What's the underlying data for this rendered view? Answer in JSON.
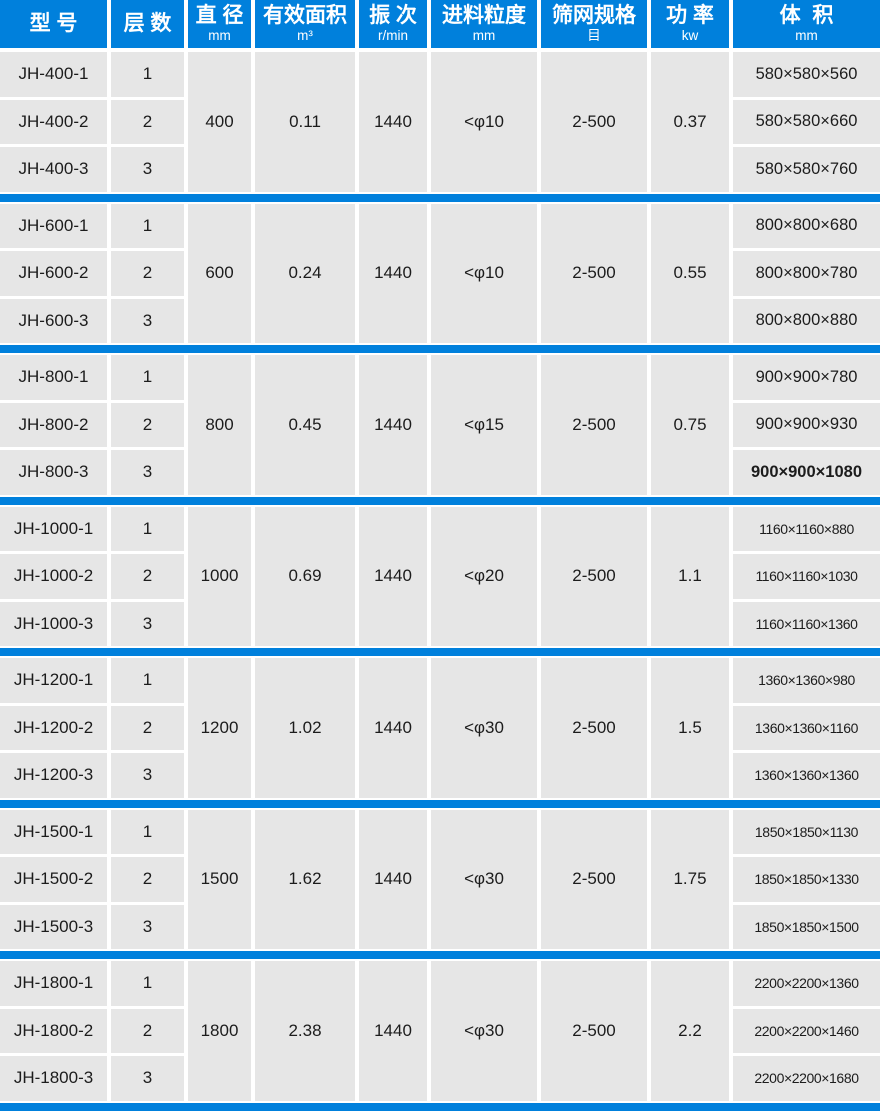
{
  "colors": {
    "accent": "#0080dc",
    "cell_bg": "#e6e6e6",
    "text": "#1c1c1c",
    "header_text": "#ffffff",
    "gap": "#ffffff"
  },
  "header": {
    "columns": [
      {
        "label": "型 号",
        "unit": ""
      },
      {
        "label": "层 数",
        "unit": ""
      },
      {
        "label": "直 径",
        "unit": "mm"
      },
      {
        "label": "有效面积",
        "unit": "m³"
      },
      {
        "label": "振 次",
        "unit": "r/min"
      },
      {
        "label": "进料粒度",
        "unit": "mm"
      },
      {
        "label": "筛网规格",
        "unit": "目"
      },
      {
        "label": "功 率",
        "unit": "kw"
      },
      {
        "label": "体  积",
        "unit": "mm"
      }
    ]
  },
  "groups": [
    {
      "models": [
        "JH-400-1",
        "JH-400-2",
        "JH-400-3"
      ],
      "layers": [
        "1",
        "2",
        "3"
      ],
      "diameter": "400",
      "effective_area": "0.11",
      "vibration": "1440",
      "feed_size": "<φ10",
      "mesh": "2-500",
      "power": "0.37",
      "volumes": [
        "580×580×560",
        "580×580×660",
        "580×580×760"
      ]
    },
    {
      "models": [
        "JH-600-1",
        "JH-600-2",
        "JH-600-3"
      ],
      "layers": [
        "1",
        "2",
        "3"
      ],
      "diameter": "600",
      "effective_area": "0.24",
      "vibration": "1440",
      "feed_size": "<φ10",
      "mesh": "2-500",
      "power": "0.55",
      "volumes": [
        "800×800×680",
        "800×800×780",
        "800×800×880"
      ]
    },
    {
      "models": [
        "JH-800-1",
        "JH-800-2",
        "JH-800-3"
      ],
      "layers": [
        "1",
        "2",
        "3"
      ],
      "diameter": "800",
      "effective_area": "0.45",
      "vibration": "1440",
      "feed_size": "<φ15",
      "mesh": "2-500",
      "power": "0.75",
      "volumes": [
        "900×900×780",
        "900×900×930",
        "900×900×1080"
      ],
      "bold_volume_index": 2
    },
    {
      "models": [
        "JH-1000-1",
        "JH-1000-2",
        "JH-1000-3"
      ],
      "layers": [
        "1",
        "2",
        "3"
      ],
      "diameter": "1000",
      "effective_area": "0.69",
      "vibration": "1440",
      "feed_size": "<φ20",
      "mesh": "2-500",
      "power": "1.1",
      "volumes": [
        "1160×1160×880",
        "1160×1160×1030",
        "1160×1160×1360"
      ]
    },
    {
      "models": [
        "JH-1200-1",
        "JH-1200-2",
        "JH-1200-3"
      ],
      "layers": [
        "1",
        "2",
        "3"
      ],
      "diameter": "1200",
      "effective_area": "1.02",
      "vibration": "1440",
      "feed_size": "<φ30",
      "mesh": "2-500",
      "power": "1.5",
      "volumes": [
        "1360×1360×980",
        "1360×1360×1160",
        "1360×1360×1360"
      ]
    },
    {
      "models": [
        "JH-1500-1",
        "JH-1500-2",
        "JH-1500-3"
      ],
      "layers": [
        "1",
        "2",
        "3"
      ],
      "diameter": "1500",
      "effective_area": "1.62",
      "vibration": "1440",
      "feed_size": "<φ30",
      "mesh": "2-500",
      "power": "1.75",
      "volumes": [
        "1850×1850×1130",
        "1850×1850×1330",
        "1850×1850×1500"
      ]
    },
    {
      "models": [
        "JH-1800-1",
        "JH-1800-2",
        "JH-1800-3"
      ],
      "layers": [
        "1",
        "2",
        "3"
      ],
      "diameter": "1800",
      "effective_area": "2.38",
      "vibration": "1440",
      "feed_size": "<φ30",
      "mesh": "2-500",
      "power": "2.2",
      "volumes": [
        "2200×2200×1360",
        "2200×2200×1460",
        "2200×2200×1680"
      ]
    }
  ]
}
